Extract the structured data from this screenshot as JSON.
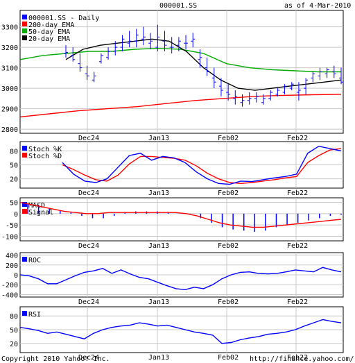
{
  "header": {
    "symbol": "000001.SS",
    "date": "as of  4-Mar-2010"
  },
  "footer": {
    "copyright": "Copyright 2010 Yahoo! Inc.",
    "url": "http://finance.yahoo.com/"
  },
  "colors": {
    "price": "#0000ff",
    "ema200": "#ff0000",
    "ema50": "#00aa00",
    "ema20": "#000000",
    "stochK": "#0000ff",
    "stochD": "#ff0000",
    "macd": "#0000ff",
    "signal": "#ff0000",
    "roc": "#0000ff",
    "rsi": "#0000ff",
    "grid": "#c8c8c8"
  },
  "chart_data": [
    {
      "type": "line",
      "panel": "price",
      "legend": [
        "000001.SS - Daily",
        "200-day EMA",
        "50-day EMA",
        "20-day EMA"
      ],
      "x_tick_labels": [
        "Dec24",
        "Jan13",
        "Feb02",
        "Feb22"
      ],
      "x_tick_index": [
        13,
        25,
        37,
        49
      ],
      "yticks": [
        2800,
        2900,
        3000,
        3100,
        3200,
        3300
      ],
      "ylim": [
        2780,
        3380
      ],
      "ohlc": [
        [
          3170,
          3210,
          3150,
          3175
        ],
        [
          3160,
          3200,
          3130,
          3140
        ],
        [
          3120,
          3170,
          3080,
          3100
        ],
        [
          3070,
          3110,
          3040,
          3060
        ],
        [
          3040,
          3080,
          3030,
          3060
        ],
        [
          3130,
          3170,
          3120,
          3160
        ],
        [
          3150,
          3200,
          3140,
          3180
        ],
        [
          3180,
          3230,
          3160,
          3200
        ],
        [
          3200,
          3260,
          3180,
          3240
        ],
        [
          3220,
          3280,
          3200,
          3230
        ],
        [
          3230,
          3290,
          3200,
          3260
        ],
        [
          3240,
          3300,
          3210,
          3250
        ],
        [
          3220,
          3270,
          3190,
          3230
        ],
        [
          3200,
          3310,
          3180,
          3250
        ],
        [
          3230,
          3280,
          3180,
          3210
        ],
        [
          3200,
          3250,
          3170,
          3200
        ],
        [
          3210,
          3250,
          3180,
          3230
        ],
        [
          3220,
          3260,
          3190,
          3220
        ],
        [
          3230,
          3270,
          3200,
          3240
        ],
        [
          3140,
          3190,
          3100,
          3150
        ],
        [
          3100,
          3150,
          3060,
          3080
        ],
        [
          3050,
          3100,
          3000,
          3030
        ],
        [
          3010,
          3050,
          2960,
          2990
        ],
        [
          2980,
          3020,
          2940,
          2970
        ],
        [
          2950,
          2990,
          2920,
          2960
        ],
        [
          2930,
          2970,
          2910,
          2940
        ],
        [
          2940,
          2980,
          2920,
          2950
        ],
        [
          2950,
          2980,
          2930,
          2960
        ],
        [
          2930,
          2970,
          2920,
          2950
        ],
        [
          2950,
          2990,
          2940,
          2980
        ],
        [
          2970,
          3000,
          2960,
          2990
        ],
        [
          2980,
          3020,
          2970,
          3010
        ],
        [
          3000,
          3030,
          2990,
          3020
        ],
        [
          2980,
          3030,
          2940,
          2990
        ],
        [
          3000,
          3050,
          2970,
          3040
        ],
        [
          3050,
          3080,
          3030,
          3070
        ],
        [
          3060,
          3100,
          3040,
          3080
        ],
        [
          3070,
          3100,
          3050,
          3090
        ],
        [
          3080,
          3110,
          3050,
          3070
        ],
        [
          3050,
          3100,
          3020,
          3030
        ]
      ],
      "ema200": [
        2860,
        2875,
        2890,
        2900,
        2910,
        2925,
        2940,
        2950,
        2960,
        2965,
        2968,
        2970
      ],
      "ema50": [
        3140,
        3160,
        3170,
        3180,
        3180,
        3190,
        3195,
        3190,
        3170,
        3120,
        3100,
        3090,
        3085,
        3080,
        3080
      ],
      "ema20": [
        3140,
        3190,
        3210,
        3220,
        3230,
        3240,
        3230,
        3180,
        3100,
        3040,
        3000,
        2990,
        3000,
        3010,
        3020,
        3030,
        3040
      ]
    },
    {
      "type": "line",
      "panel": "stochastic",
      "legend": [
        "Stoch %K",
        "Stoch %D"
      ],
      "x_tick_labels": [
        "Dec24",
        "Jan13",
        "Feb02",
        "Feb22"
      ],
      "yticks": [
        20,
        50,
        80
      ],
      "ylim": [
        0,
        100
      ],
      "k": [
        55,
        30,
        15,
        12,
        20,
        45,
        70,
        75,
        60,
        68,
        65,
        55,
        35,
        20,
        10,
        8,
        15,
        14,
        18,
        22,
        25,
        30,
        75,
        90,
        85,
        80
      ],
      "d": [
        50,
        40,
        28,
        18,
        15,
        28,
        52,
        68,
        68,
        66,
        64,
        60,
        48,
        32,
        20,
        12,
        10,
        12,
        15,
        18,
        22,
        25,
        55,
        70,
        82,
        85
      ]
    },
    {
      "type": "line",
      "panel": "macd",
      "legend": [
        "MACD",
        "Signal"
      ],
      "x_tick_labels": [
        "Dec24",
        "Jan13",
        "Feb02",
        "Feb22"
      ],
      "yticks": [
        -100,
        -50,
        0,
        50
      ],
      "ylim": [
        -120,
        70
      ],
      "macd": [
        45,
        40,
        25,
        15,
        5,
        -10,
        -20,
        -20,
        -10,
        5,
        10,
        10,
        10,
        5,
        0,
        -5,
        -20,
        -40,
        -60,
        -70,
        -75,
        -80,
        -75,
        -60,
        -50,
        -40,
        -30,
        -20,
        -10,
        -5
      ],
      "signal": [
        50,
        40,
        30,
        20,
        10,
        5,
        0,
        0,
        5,
        5,
        5,
        5,
        5,
        5,
        5,
        0,
        -10,
        -25,
        -40,
        -50,
        -55,
        -60,
        -60,
        -55,
        -50,
        -45,
        -40,
        -35,
        -30,
        -25
      ]
    },
    {
      "type": "line",
      "panel": "roc",
      "legend": [
        "ROC"
      ],
      "x_tick_labels": [
        "Dec24",
        "Jan13",
        "Feb02",
        "Feb22"
      ],
      "yticks": [
        -400,
        -200,
        0,
        200,
        400
      ],
      "ylim": [
        -450,
        450
      ],
      "values": [
        0,
        -20,
        -80,
        -180,
        -180,
        -100,
        -20,
        50,
        80,
        130,
        30,
        100,
        20,
        -50,
        -80,
        -150,
        -220,
        -280,
        -300,
        -250,
        -280,
        -200,
        -80,
        0,
        50,
        60,
        30,
        20,
        30,
        60,
        100,
        80,
        60,
        150,
        100,
        60
      ]
    },
    {
      "type": "line",
      "panel": "rsi",
      "legend": [
        "RSI"
      ],
      "x_tick_labels": [
        "Dec24",
        "Jan13",
        "Feb02",
        "Feb22"
      ],
      "yticks": [
        20,
        50,
        80
      ],
      "ylim": [
        0,
        100
      ],
      "values": [
        55,
        52,
        48,
        42,
        45,
        40,
        35,
        30,
        42,
        50,
        55,
        58,
        60,
        65,
        62,
        58,
        60,
        55,
        50,
        45,
        42,
        38,
        20,
        22,
        28,
        32,
        35,
        40,
        42,
        45,
        50,
        58,
        65,
        72,
        68,
        65
      ]
    }
  ]
}
